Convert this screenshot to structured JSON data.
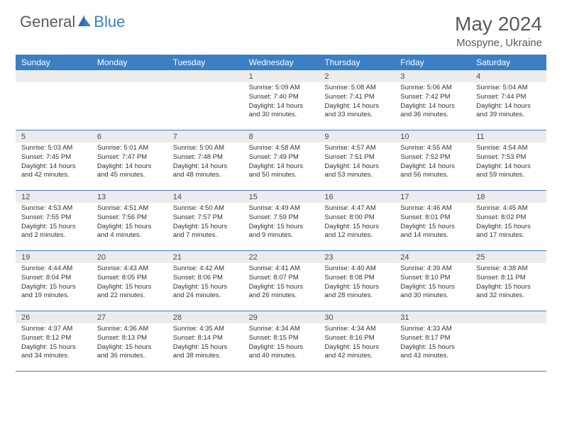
{
  "logo": {
    "text_general": "General",
    "text_blue": "Blue"
  },
  "title": "May 2024",
  "location": "Mospyne, Ukraine",
  "colors": {
    "header_bg": "#3b7fc4",
    "header_text": "#ffffff",
    "daynum_bg": "#ececec",
    "text_gray": "#5a5a5a",
    "logo_blue": "#3b7fc4"
  },
  "day_labels": [
    "Sunday",
    "Monday",
    "Tuesday",
    "Wednesday",
    "Thursday",
    "Friday",
    "Saturday"
  ],
  "weeks": [
    [
      {
        "num": "",
        "lines": []
      },
      {
        "num": "",
        "lines": []
      },
      {
        "num": "",
        "lines": []
      },
      {
        "num": "1",
        "lines": [
          "Sunrise: 5:09 AM",
          "Sunset: 7:40 PM",
          "Daylight: 14 hours",
          "and 30 minutes."
        ]
      },
      {
        "num": "2",
        "lines": [
          "Sunrise: 5:08 AM",
          "Sunset: 7:41 PM",
          "Daylight: 14 hours",
          "and 33 minutes."
        ]
      },
      {
        "num": "3",
        "lines": [
          "Sunrise: 5:06 AM",
          "Sunset: 7:42 PM",
          "Daylight: 14 hours",
          "and 36 minutes."
        ]
      },
      {
        "num": "4",
        "lines": [
          "Sunrise: 5:04 AM",
          "Sunset: 7:44 PM",
          "Daylight: 14 hours",
          "and 39 minutes."
        ]
      }
    ],
    [
      {
        "num": "5",
        "lines": [
          "Sunrise: 5:03 AM",
          "Sunset: 7:45 PM",
          "Daylight: 14 hours",
          "and 42 minutes."
        ]
      },
      {
        "num": "6",
        "lines": [
          "Sunrise: 5:01 AM",
          "Sunset: 7:47 PM",
          "Daylight: 14 hours",
          "and 45 minutes."
        ]
      },
      {
        "num": "7",
        "lines": [
          "Sunrise: 5:00 AM",
          "Sunset: 7:48 PM",
          "Daylight: 14 hours",
          "and 48 minutes."
        ]
      },
      {
        "num": "8",
        "lines": [
          "Sunrise: 4:58 AM",
          "Sunset: 7:49 PM",
          "Daylight: 14 hours",
          "and 50 minutes."
        ]
      },
      {
        "num": "9",
        "lines": [
          "Sunrise: 4:57 AM",
          "Sunset: 7:51 PM",
          "Daylight: 14 hours",
          "and 53 minutes."
        ]
      },
      {
        "num": "10",
        "lines": [
          "Sunrise: 4:55 AM",
          "Sunset: 7:52 PM",
          "Daylight: 14 hours",
          "and 56 minutes."
        ]
      },
      {
        "num": "11",
        "lines": [
          "Sunrise: 4:54 AM",
          "Sunset: 7:53 PM",
          "Daylight: 14 hours",
          "and 59 minutes."
        ]
      }
    ],
    [
      {
        "num": "12",
        "lines": [
          "Sunrise: 4:53 AM",
          "Sunset: 7:55 PM",
          "Daylight: 15 hours",
          "and 2 minutes."
        ]
      },
      {
        "num": "13",
        "lines": [
          "Sunrise: 4:51 AM",
          "Sunset: 7:56 PM",
          "Daylight: 15 hours",
          "and 4 minutes."
        ]
      },
      {
        "num": "14",
        "lines": [
          "Sunrise: 4:50 AM",
          "Sunset: 7:57 PM",
          "Daylight: 15 hours",
          "and 7 minutes."
        ]
      },
      {
        "num": "15",
        "lines": [
          "Sunrise: 4:49 AM",
          "Sunset: 7:59 PM",
          "Daylight: 15 hours",
          "and 9 minutes."
        ]
      },
      {
        "num": "16",
        "lines": [
          "Sunrise: 4:47 AM",
          "Sunset: 8:00 PM",
          "Daylight: 15 hours",
          "and 12 minutes."
        ]
      },
      {
        "num": "17",
        "lines": [
          "Sunrise: 4:46 AM",
          "Sunset: 8:01 PM",
          "Daylight: 15 hours",
          "and 14 minutes."
        ]
      },
      {
        "num": "18",
        "lines": [
          "Sunrise: 4:45 AM",
          "Sunset: 8:02 PM",
          "Daylight: 15 hours",
          "and 17 minutes."
        ]
      }
    ],
    [
      {
        "num": "19",
        "lines": [
          "Sunrise: 4:44 AM",
          "Sunset: 8:04 PM",
          "Daylight: 15 hours",
          "and 19 minutes."
        ]
      },
      {
        "num": "20",
        "lines": [
          "Sunrise: 4:43 AM",
          "Sunset: 8:05 PM",
          "Daylight: 15 hours",
          "and 22 minutes."
        ]
      },
      {
        "num": "21",
        "lines": [
          "Sunrise: 4:42 AM",
          "Sunset: 8:06 PM",
          "Daylight: 15 hours",
          "and 24 minutes."
        ]
      },
      {
        "num": "22",
        "lines": [
          "Sunrise: 4:41 AM",
          "Sunset: 8:07 PM",
          "Daylight: 15 hours",
          "and 26 minutes."
        ]
      },
      {
        "num": "23",
        "lines": [
          "Sunrise: 4:40 AM",
          "Sunset: 8:08 PM",
          "Daylight: 15 hours",
          "and 28 minutes."
        ]
      },
      {
        "num": "24",
        "lines": [
          "Sunrise: 4:39 AM",
          "Sunset: 8:10 PM",
          "Daylight: 15 hours",
          "and 30 minutes."
        ]
      },
      {
        "num": "25",
        "lines": [
          "Sunrise: 4:38 AM",
          "Sunset: 8:11 PM",
          "Daylight: 15 hours",
          "and 32 minutes."
        ]
      }
    ],
    [
      {
        "num": "26",
        "lines": [
          "Sunrise: 4:37 AM",
          "Sunset: 8:12 PM",
          "Daylight: 15 hours",
          "and 34 minutes."
        ]
      },
      {
        "num": "27",
        "lines": [
          "Sunrise: 4:36 AM",
          "Sunset: 8:13 PM",
          "Daylight: 15 hours",
          "and 36 minutes."
        ]
      },
      {
        "num": "28",
        "lines": [
          "Sunrise: 4:35 AM",
          "Sunset: 8:14 PM",
          "Daylight: 15 hours",
          "and 38 minutes."
        ]
      },
      {
        "num": "29",
        "lines": [
          "Sunrise: 4:34 AM",
          "Sunset: 8:15 PM",
          "Daylight: 15 hours",
          "and 40 minutes."
        ]
      },
      {
        "num": "30",
        "lines": [
          "Sunrise: 4:34 AM",
          "Sunset: 8:16 PM",
          "Daylight: 15 hours",
          "and 42 minutes."
        ]
      },
      {
        "num": "31",
        "lines": [
          "Sunrise: 4:33 AM",
          "Sunset: 8:17 PM",
          "Daylight: 15 hours",
          "and 43 minutes."
        ]
      },
      {
        "num": "",
        "lines": []
      }
    ]
  ]
}
